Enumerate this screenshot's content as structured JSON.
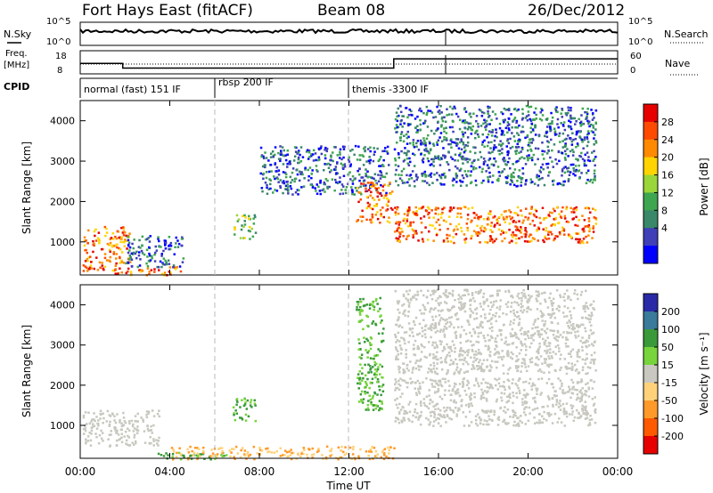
{
  "header": {
    "title": "Fort Hays East (fitACF)",
    "beam": "Beam 08",
    "date": "26/Dec/2012"
  },
  "noise_panel": {
    "left_label": "N.Sky",
    "right_label": "N.Search",
    "left_ticks": [
      "10^5",
      "10^0"
    ],
    "right_ticks": [
      "10^5",
      "10^0"
    ]
  },
  "freq_panel": {
    "left_label_1": "Freq.",
    "left_label_2": "[MHz]",
    "right_label": "Nave",
    "left_ticks": [
      "18",
      "8"
    ],
    "right_ticks": [
      "60",
      "0"
    ]
  },
  "cpid": {
    "label": "CPID",
    "segments": [
      {
        "text": "normal (fast) 151 IF",
        "start_hour": 0
      },
      {
        "text": "rbsp 200 IF",
        "start_hour": 6
      },
      {
        "text": "themis -3300 IF",
        "start_hour": 12
      }
    ]
  },
  "power_panel": {
    "ylabel": "Slant Range [km]",
    "colorbar_label": "Power [dB]",
    "colorbar_ticks": [
      "28",
      "24",
      "20",
      "16",
      "12",
      "8",
      "4"
    ],
    "colorbar_colors": [
      "#e60000",
      "#ff4a00",
      "#ff8a00",
      "#ffd400",
      "#9ad639",
      "#3fa650",
      "#39886a",
      "#3f3fb8",
      "#0000ff"
    ]
  },
  "velocity_panel": {
    "ylabel": "Slant Range [km]",
    "colorbar_label": "Velocity [m s⁻¹]",
    "colorbar_ticks": [
      "200",
      "100",
      "50",
      "15",
      "-15",
      "-50",
      "-100",
      "-200"
    ],
    "colorbar_colors": [
      "#2a2aa8",
      "#3a7a9a",
      "#3a9a3a",
      "#77d43c",
      "#c8c8c0",
      "#ffd27a",
      "#ff9a2a",
      "#ff5a00",
      "#e60000"
    ]
  },
  "axes": {
    "y_ticks": [
      "4000",
      "3000",
      "2000",
      "1000"
    ],
    "x_ticks": [
      "00:00",
      "04:00",
      "08:00",
      "12:00",
      "16:00",
      "20:00",
      "00:00"
    ],
    "xlabel": "Time UT"
  },
  "chart_data": {
    "type": "heatmap",
    "x_range_hours": [
      0,
      24
    ],
    "y_range_km": [
      180,
      4500
    ],
    "frequency_mhz_steps": [
      {
        "start_hour": 0.0,
        "end_hour": 1.9,
        "value": 12.5
      },
      {
        "start_hour": 1.9,
        "end_hour": 12.0,
        "value": 10.5
      },
      {
        "start_hour": 12.0,
        "end_hour": 14.0,
        "value": 10.5
      },
      {
        "start_hour": 14.0,
        "end_hour": 24.0,
        "value": 14.5
      }
    ],
    "power_regions": [
      {
        "t0": 0.1,
        "t1": 2.2,
        "r0": 300,
        "r1": 1400,
        "level": "high"
      },
      {
        "t0": 1.3,
        "t1": 4.5,
        "r0": 200,
        "r1": 400,
        "level": "high"
      },
      {
        "t0": 2.0,
        "t1": 4.6,
        "r0": 400,
        "r1": 1200,
        "level": "low"
      },
      {
        "t0": 6.8,
        "t1": 7.8,
        "r0": 1100,
        "r1": 1700,
        "level": "mid"
      },
      {
        "t0": 8.0,
        "t1": 13.8,
        "r0": 2200,
        "r1": 3400,
        "level": "low"
      },
      {
        "t0": 12.3,
        "t1": 13.9,
        "r0": 1500,
        "r1": 2500,
        "level": "high"
      },
      {
        "t0": 14.0,
        "t1": 23.0,
        "r0": 1000,
        "r1": 1900,
        "level": "high"
      },
      {
        "t0": 14.0,
        "t1": 23.0,
        "r0": 2400,
        "r1": 4400,
        "level": "low"
      }
    ],
    "velocity_regions": [
      {
        "t0": 0.1,
        "t1": 3.5,
        "r0": 500,
        "r1": 1400,
        "color": "gray"
      },
      {
        "t0": 3.0,
        "t1": 6.5,
        "r0": 180,
        "r1": 350,
        "color": "green"
      },
      {
        "t0": 6.8,
        "t1": 7.8,
        "r0": 1100,
        "r1": 1700,
        "color": "green"
      },
      {
        "t0": 12.3,
        "t1": 13.5,
        "r0": 1400,
        "r1": 4200,
        "color": "green"
      },
      {
        "t0": 14.0,
        "t1": 23.0,
        "r0": 1000,
        "r1": 2200,
        "color": "gray"
      },
      {
        "t0": 14.0,
        "t1": 23.0,
        "r0": 2300,
        "r1": 4400,
        "color": "gray"
      },
      {
        "t0": 4.0,
        "t1": 14.0,
        "r0": 180,
        "r1": 500,
        "color": "orange"
      }
    ]
  }
}
